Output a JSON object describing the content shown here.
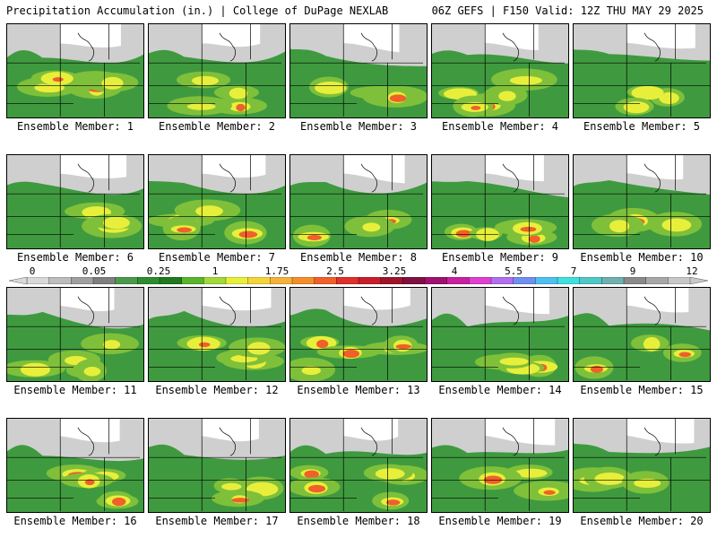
{
  "header": {
    "left": "Precipitation Accumulation (in.) | College of DuPage NEXLAB",
    "right": "06Z GEFS | F150 Valid: 12Z THU MAY 29 2025"
  },
  "members": [
    "Ensemble Member: 1",
    "Ensemble Member: 2",
    "Ensemble Member: 3",
    "Ensemble Member: 4",
    "Ensemble Member: 5",
    "Ensemble Member: 6",
    "Ensemble Member: 7",
    "Ensemble Member: 8",
    "Ensemble Member: 9",
    "Ensemble Member: 10",
    "Ensemble Member: 11",
    "Ensemble Member: 12",
    "Ensemble Member: 13",
    "Ensemble Member: 14",
    "Ensemble Member: 15",
    "Ensemble Member: 16",
    "Ensemble Member: 17",
    "Ensemble Member: 18",
    "Ensemble Member: 19",
    "Ensemble Member: 20"
  ],
  "legend": {
    "ticks": [
      "0",
      "0.05",
      "0.25",
      "1",
      "1.75",
      "2.5",
      "3.25",
      "4",
      "5.5",
      "7",
      "9",
      "12"
    ],
    "colors": [
      "#d9d9d9",
      "#bdbdbd",
      "#a0a0a0",
      "#7f7f7f",
      "#4a9a4a",
      "#2e8b2e",
      "#1f7a1f",
      "#5ab52a",
      "#a3d93a",
      "#e8ef3a",
      "#f5d43a",
      "#f5b23a",
      "#f58e2a",
      "#f0602a",
      "#e0302a",
      "#c81e2a",
      "#a0142a",
      "#801040",
      "#a01070",
      "#c820a0",
      "#e040d0",
      "#b070f0",
      "#7090f0",
      "#50c0f0",
      "#40e0e0",
      "#50c8c8",
      "#70b0b0",
      "#8a8a8a",
      "#a8a8a8",
      "#c8c8c8"
    ]
  }
}
